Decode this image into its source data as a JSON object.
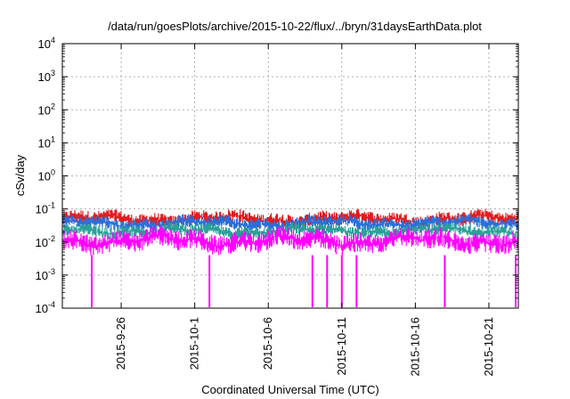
{
  "chart_data": {
    "type": "line",
    "title": "/data/run/goesPlots/archive/2015-10-22/flux/../bryn/31daysEarthData.plot",
    "xlabel": "Coordinated Universal Time (UTC)",
    "ylabel": "cSv/day",
    "yscale": "log",
    "ylim": [
      0.0001,
      10000
    ],
    "y_ticks": [
      {
        "base": "10",
        "exp": "-4",
        "value": 0.0001
      },
      {
        "base": "10",
        "exp": "-3",
        "value": 0.001
      },
      {
        "base": "10",
        "exp": "-2",
        "value": 0.01
      },
      {
        "base": "10",
        "exp": "-1",
        "value": 0.1
      },
      {
        "base": "10",
        "exp": "0",
        "value": 1
      },
      {
        "base": "10",
        "exp": "1",
        "value": 10
      },
      {
        "base": "10",
        "exp": "2",
        "value": 100
      },
      {
        "base": "10",
        "exp": "3",
        "value": 1000
      },
      {
        "base": "10",
        "exp": "4",
        "value": 10000
      }
    ],
    "xlim": [
      "2015-09-22",
      "2015-10-23"
    ],
    "x_ticks": [
      "2015-9-26",
      "2015-10-1",
      "2015-10-6",
      "2015-10-11",
      "2015-10-16",
      "2015-10-21"
    ],
    "grid": true,
    "series": [
      {
        "color": "#e41a1c",
        "typical_range": [
          0.025,
          0.1
        ]
      },
      {
        "color": "#2a6fdb",
        "typical_range": [
          0.02,
          0.07
        ]
      },
      {
        "color": "#2aa198",
        "typical_range": [
          0.012,
          0.04
        ]
      },
      {
        "color": "#ff00ff",
        "typical_range": [
          0.004,
          0.03
        ],
        "dropouts": [
          "2015-09-24",
          "2015-10-02",
          "2015-10-09",
          "2015-10-10",
          "2015-10-11",
          "2015-10-12",
          "2015-10-18",
          "2015-10-23"
        ]
      }
    ]
  }
}
